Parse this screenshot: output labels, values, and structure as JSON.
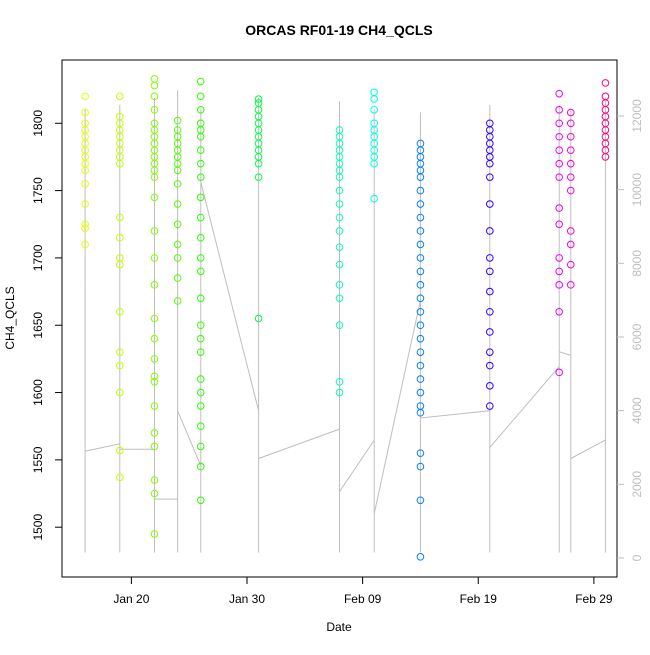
{
  "chart_data": {
    "type": "scatter",
    "title": "ORCAS RF01-19 CH4_QCLS",
    "xlabel": "Date",
    "ylabel": "CH4_QCLS",
    "xlim": [
      "01-14",
      "03-02"
    ],
    "xticks": [
      {
        "value": "01-20",
        "label": "Jan 20"
      },
      {
        "value": "01-30",
        "label": "Jan 30"
      },
      {
        "value": "02-09",
        "label": "Feb 09"
      },
      {
        "value": "02-19",
        "label": "Feb 19"
      },
      {
        "value": "02-29",
        "label": "Feb 29"
      }
    ],
    "ylim": [
      1463,
      1847
    ],
    "yticks": [
      1500,
      1550,
      1600,
      1650,
      1700,
      1750,
      1800
    ],
    "y2lim": [
      -516,
      13520
    ],
    "y2ticks": [
      0,
      2000,
      4000,
      6000,
      8000,
      10000,
      12000
    ],
    "series": [
      {
        "color": "#E6FF00",
        "x": [
          "01-16",
          "01-16",
          "01-16",
          "01-16",
          "01-16",
          "01-16",
          "01-16",
          "01-16",
          "01-16",
          "01-16",
          "01-16",
          "01-16",
          "01-16",
          "01-16",
          "01-16"
        ],
        "values": [
          1820,
          1808,
          1800,
          1795,
          1790,
          1785,
          1780,
          1775,
          1770,
          1765,
          1755,
          1740,
          1725,
          1722,
          1710
        ]
      },
      {
        "color": "#C2FF00",
        "x": [
          "01-19",
          "01-19",
          "01-19",
          "01-19",
          "01-19",
          "01-19",
          "01-19",
          "01-19",
          "01-19",
          "01-19",
          "01-19",
          "01-19",
          "01-19",
          "01-19",
          "01-19",
          "01-19",
          "01-19",
          "01-19",
          "01-19"
        ],
        "values": [
          1820,
          1805,
          1800,
          1795,
          1790,
          1785,
          1780,
          1775,
          1770,
          1730,
          1715,
          1700,
          1695,
          1660,
          1630,
          1620,
          1600,
          1557,
          1537
        ]
      },
      {
        "color": "#80FF00",
        "x": [
          "01-22",
          "01-22",
          "01-22",
          "01-22",
          "01-22",
          "01-22",
          "01-22",
          "01-22",
          "01-22",
          "01-22",
          "01-22",
          "01-22",
          "01-22",
          "01-22",
          "01-22",
          "01-22",
          "01-22",
          "01-22",
          "01-22",
          "01-22",
          "01-22",
          "01-22",
          "01-22",
          "01-22",
          "01-22",
          "01-22",
          "01-22",
          "01-22"
        ],
        "values": [
          1833,
          1828,
          1820,
          1810,
          1800,
          1795,
          1790,
          1785,
          1780,
          1775,
          1770,
          1765,
          1760,
          1745,
          1720,
          1700,
          1680,
          1655,
          1640,
          1625,
          1612,
          1608,
          1590,
          1570,
          1560,
          1535,
          1525,
          1495
        ]
      },
      {
        "color": "#55FF00",
        "x": [
          "01-24",
          "01-24",
          "01-24",
          "01-24",
          "01-24",
          "01-24",
          "01-24",
          "01-24",
          "01-24",
          "01-24",
          "01-24",
          "01-24",
          "01-24",
          "01-24",
          "01-24"
        ],
        "values": [
          1802,
          1795,
          1790,
          1785,
          1780,
          1775,
          1770,
          1765,
          1755,
          1740,
          1725,
          1710,
          1700,
          1685,
          1668
        ]
      },
      {
        "color": "#2BFF00",
        "x": [
          "01-26",
          "01-26",
          "01-26",
          "01-26",
          "01-26",
          "01-26",
          "01-26",
          "01-26",
          "01-26",
          "01-26",
          "01-26",
          "01-26",
          "01-26",
          "01-26",
          "01-26",
          "01-26",
          "01-26",
          "01-26",
          "01-26",
          "01-26",
          "01-26",
          "01-26",
          "01-26",
          "01-26",
          "01-26"
        ],
        "values": [
          1831,
          1820,
          1810,
          1800,
          1795,
          1790,
          1780,
          1770,
          1760,
          1745,
          1730,
          1715,
          1700,
          1690,
          1670,
          1650,
          1640,
          1630,
          1610,
          1600,
          1590,
          1575,
          1560,
          1545,
          1520
        ]
      },
      {
        "color": "#00FF40",
        "x": [
          "01-31",
          "01-31",
          "01-31",
          "01-31",
          "01-31",
          "01-31",
          "01-31",
          "01-31",
          "01-31",
          "01-31",
          "01-31",
          "01-31",
          "01-31"
        ],
        "values": [
          1818,
          1815,
          1810,
          1805,
          1800,
          1795,
          1790,
          1785,
          1780,
          1775,
          1770,
          1760,
          1655
        ]
      },
      {
        "color": "#00FFC0",
        "x": [
          "02-07",
          "02-07",
          "02-07",
          "02-07",
          "02-07",
          "02-07",
          "02-07",
          "02-07",
          "02-07",
          "02-07",
          "02-07",
          "02-07",
          "02-07",
          "02-07",
          "02-07",
          "02-07",
          "02-07",
          "02-07",
          "02-07"
        ],
        "values": [
          1795,
          1790,
          1785,
          1780,
          1775,
          1770,
          1765,
          1760,
          1750,
          1740,
          1730,
          1720,
          1708,
          1695,
          1680,
          1670,
          1650,
          1608,
          1600
        ]
      },
      {
        "color": "#00FFEA",
        "x": [
          "02-10",
          "02-10",
          "02-10",
          "02-10",
          "02-10",
          "02-10",
          "02-10",
          "02-10",
          "02-10",
          "02-10",
          "02-10"
        ],
        "values": [
          1823,
          1818,
          1810,
          1800,
          1795,
          1790,
          1785,
          1780,
          1775,
          1770,
          1744
        ]
      },
      {
        "color": "#0080FF",
        "x": [
          "02-14",
          "02-14",
          "02-14",
          "02-14",
          "02-14",
          "02-14",
          "02-14",
          "02-14",
          "02-14",
          "02-14",
          "02-14",
          "02-14",
          "02-14",
          "02-14",
          "02-14",
          "02-14",
          "02-14",
          "02-14",
          "02-14",
          "02-14",
          "02-14",
          "02-14",
          "02-14",
          "02-14",
          "02-14",
          "02-14",
          "02-14",
          "02-14"
        ],
        "values": [
          1785,
          1780,
          1775,
          1770,
          1765,
          1760,
          1750,
          1740,
          1730,
          1720,
          1710,
          1700,
          1690,
          1680,
          1670,
          1660,
          1650,
          1640,
          1630,
          1620,
          1610,
          1600,
          1590,
          1585,
          1555,
          1545,
          1520,
          1478
        ]
      },
      {
        "color": "#3300FF",
        "x": [
          "02-20",
          "02-20",
          "02-20",
          "02-20",
          "02-20",
          "02-20",
          "02-20",
          "02-20",
          "02-20",
          "02-20",
          "02-20",
          "02-20",
          "02-20",
          "02-20",
          "02-20",
          "02-20",
          "02-20",
          "02-20",
          "02-20"
        ],
        "values": [
          1800,
          1795,
          1790,
          1785,
          1780,
          1775,
          1770,
          1760,
          1740,
          1720,
          1700,
          1690,
          1675,
          1660,
          1645,
          1630,
          1620,
          1605,
          1590
        ]
      },
      {
        "color": "#EA00FF",
        "x": [
          "02-26",
          "02-26",
          "02-26",
          "02-26",
          "02-26",
          "02-26",
          "02-26",
          "02-26",
          "02-26",
          "02-26",
          "02-26",
          "02-26",
          "02-26",
          "02-26"
        ],
        "values": [
          1822,
          1810,
          1800,
          1790,
          1780,
          1770,
          1760,
          1737,
          1725,
          1700,
          1690,
          1680,
          1660,
          1615
        ]
      },
      {
        "color": "#FF00D5",
        "x": [
          "02-27",
          "02-27",
          "02-27",
          "02-27",
          "02-27",
          "02-27",
          "02-27",
          "02-27",
          "02-27",
          "02-27",
          "02-27"
        ],
        "values": [
          1808,
          1800,
          1790,
          1780,
          1770,
          1760,
          1750,
          1720,
          1710,
          1695,
          1680
        ]
      },
      {
        "color": "#FF0080",
        "x": [
          "03-01",
          "03-01",
          "03-01",
          "03-01",
          "03-01",
          "03-01",
          "03-01",
          "03-01",
          "03-01",
          "03-01",
          "03-01"
        ],
        "values": [
          1830,
          1820,
          1815,
          1810,
          1805,
          1800,
          1795,
          1790,
          1785,
          1780,
          1775
        ]
      },
      {
        "type": "line",
        "axis": "y2",
        "color": "#BEBEBE",
        "x": [
          "01-16",
          "01-16",
          "01-16",
          "01-16",
          "01-16",
          "01-16",
          "01-19",
          "01-19",
          "01-19",
          "01-19",
          "01-19",
          "01-19",
          "01-22",
          "01-22",
          "01-22",
          "01-22",
          "01-22",
          "01-22",
          "01-24",
          "01-24",
          "01-24",
          "01-24",
          "01-24",
          "01-24",
          "01-26",
          "01-26",
          "01-26",
          "01-26",
          "01-26",
          "01-26",
          "01-31",
          "01-31",
          "01-31",
          "01-31",
          "01-31",
          "01-31",
          "02-07",
          "02-07",
          "02-07",
          "02-07",
          "02-07",
          "02-07",
          "02-10",
          "02-10",
          "02-10",
          "02-10",
          "02-10",
          "02-10",
          "02-14",
          "02-14",
          "02-14",
          "02-14",
          "02-14",
          "02-14",
          "02-20",
          "02-20",
          "02-20",
          "02-20",
          "02-20",
          "02-20",
          "02-26",
          "02-26",
          "02-26",
          "02-26",
          "02-26",
          "02-26",
          "02-27",
          "02-27",
          "02-27",
          "02-27",
          "02-27",
          "02-27",
          "03-01",
          "03-01",
          "03-01",
          "03-01",
          "03-01",
          "03-01"
        ],
        "values": [
          2900,
          150,
          12200,
          150,
          7500,
          2900,
          3100,
          150,
          12300,
          150,
          12000,
          2950,
          2950,
          150,
          12500,
          150,
          12400,
          1600,
          1600,
          150,
          12700,
          150,
          12600,
          4000,
          2500,
          150,
          12200,
          150,
          12000,
          10200,
          4000,
          150,
          12500,
          150,
          9000,
          2700,
          3500,
          150,
          12400,
          150,
          12000,
          1800,
          3200,
          150,
          12200,
          150,
          12000,
          1200,
          7000,
          150,
          12100,
          150,
          12000,
          3800,
          4000,
          150,
          12300,
          150,
          12000,
          3000,
          5200,
          150,
          12300,
          150,
          12000,
          5600,
          5500,
          150,
          12200,
          150,
          12000,
          2700,
          3200,
          150,
          12000,
          1100,
          12500,
          1100
        ]
      }
    ]
  }
}
